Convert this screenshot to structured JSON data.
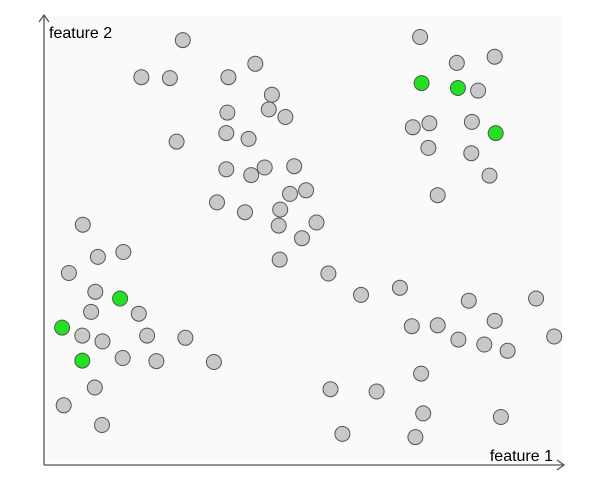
{
  "chart_data": {
    "type": "scatter",
    "xlabel": "feature 1",
    "ylabel": "feature 2",
    "xlim": [
      0,
      100
    ],
    "ylim": [
      0,
      100
    ],
    "grid": false,
    "colors": {
      "unlabeled": "#c8c8c8",
      "labeled": "#22e022",
      "stroke": "#555555",
      "plot_bg": "#fafafa",
      "axis": "#555555"
    },
    "series": [
      {
        "key": "unlabeled",
        "points": [
          [
            26.8,
            94.6
          ],
          [
            18.8,
            86.3
          ],
          [
            24.3,
            86.1
          ],
          [
            35.6,
            86.3
          ],
          [
            40.8,
            89.3
          ],
          [
            44.0,
            82.4
          ],
          [
            25.6,
            71.9
          ],
          [
            35.4,
            78.4
          ],
          [
            39.5,
            72.5
          ],
          [
            35.2,
            73.8
          ],
          [
            46.6,
            77.4
          ],
          [
            43.4,
            79.1
          ],
          [
            35.2,
            65.7
          ],
          [
            42.6,
            66.1
          ],
          [
            40.0,
            64.4
          ],
          [
            48.3,
            66.4
          ],
          [
            47.5,
            60.2
          ],
          [
            33.4,
            58.3
          ],
          [
            38.8,
            56.1
          ],
          [
            45.6,
            56.7
          ],
          [
            50.6,
            61.0
          ],
          [
            45.3,
            53.1
          ],
          [
            52.6,
            53.8
          ],
          [
            49.8,
            50.3
          ],
          [
            45.5,
            45.5
          ],
          [
            54.9,
            42.4
          ],
          [
            61.2,
            37.6
          ],
          [
            68.7,
            39.2
          ],
          [
            72.6,
            95.3
          ],
          [
            79.7,
            89.5
          ],
          [
            87.0,
            90.9
          ],
          [
            83.8,
            83.3
          ],
          [
            71.2,
            75.1
          ],
          [
            74.4,
            76.0
          ],
          [
            82.6,
            76.3
          ],
          [
            74.2,
            70.5
          ],
          [
            82.5,
            69.3
          ],
          [
            86.0,
            64.3
          ],
          [
            76.0,
            59.9
          ],
          [
            7.5,
            53.3
          ],
          [
            10.4,
            46.1
          ],
          [
            15.3,
            47.2
          ],
          [
            4.8,
            42.5
          ],
          [
            9.9,
            38.3
          ],
          [
            9.1,
            33.8
          ],
          [
            18.3,
            33.4
          ],
          [
            7.4,
            28.5
          ],
          [
            11.3,
            27.2
          ],
          [
            19.9,
            28.5
          ],
          [
            15.2,
            23.5
          ],
          [
            21.7,
            22.8
          ],
          [
            27.3,
            28.0
          ],
          [
            32.8,
            22.6
          ],
          [
            9.8,
            16.9
          ],
          [
            3.8,
            12.9
          ],
          [
            11.2,
            8.5
          ],
          [
            82.0,
            36.3
          ],
          [
            95.0,
            36.8
          ],
          [
            71.0,
            30.6
          ],
          [
            76.0,
            30.8
          ],
          [
            80.0,
            27.6
          ],
          [
            87.0,
            31.8
          ],
          [
            85.0,
            26.5
          ],
          [
            89.5,
            25.1
          ],
          [
            98.5,
            28.3
          ],
          [
            72.8,
            20.0
          ],
          [
            55.3,
            16.5
          ],
          [
            64.2,
            16.0
          ],
          [
            73.2,
            11.1
          ],
          [
            88.2,
            10.3
          ],
          [
            57.6,
            6.5
          ],
          [
            71.7,
            5.8
          ]
        ]
      },
      {
        "key": "labeled",
        "points": [
          [
            72.9,
            85.0
          ],
          [
            79.9,
            83.9
          ],
          [
            87.2,
            73.8
          ],
          [
            14.7,
            36.8
          ],
          [
            3.5,
            30.3
          ],
          [
            7.4,
            22.9
          ]
        ]
      }
    ]
  }
}
